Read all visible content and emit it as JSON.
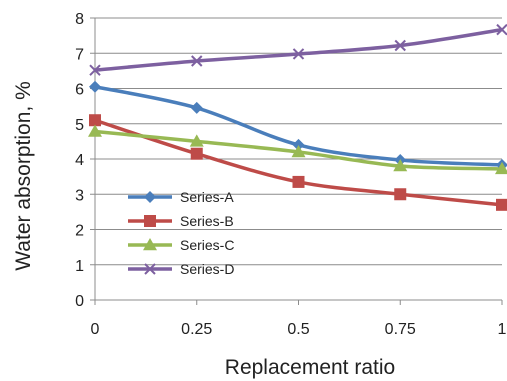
{
  "chart_data": {
    "type": "line",
    "xlabel": "Replacement ratio",
    "ylabel": "Water absorption, %",
    "x": [
      0,
      0.25,
      0.5,
      0.75,
      1
    ],
    "x_tick_labels": [
      "0",
      "0.25",
      "0.5",
      "0.75",
      "1"
    ],
    "xlim": [
      0,
      1
    ],
    "ylim": [
      0,
      8
    ],
    "y_ticks": [
      0,
      1,
      2,
      3,
      4,
      5,
      6,
      7,
      8
    ],
    "grid": "horizontal",
    "legend_position": "lower-left",
    "series": [
      {
        "name": "Series-A",
        "values": [
          6.05,
          5.45,
          4.4,
          3.97,
          3.83
        ],
        "color": "#4a7ebb",
        "marker": "diamond"
      },
      {
        "name": "Series-B",
        "values": [
          5.1,
          4.15,
          3.35,
          3.0,
          2.7
        ],
        "color": "#be4b48",
        "marker": "square"
      },
      {
        "name": "Series-C",
        "values": [
          4.78,
          4.5,
          4.2,
          3.8,
          3.72
        ],
        "color": "#98b954",
        "marker": "triangle"
      },
      {
        "name": "Series-D",
        "values": [
          6.52,
          6.78,
          6.98,
          7.22,
          7.67
        ],
        "color": "#7d60a0",
        "marker": "x"
      }
    ]
  }
}
